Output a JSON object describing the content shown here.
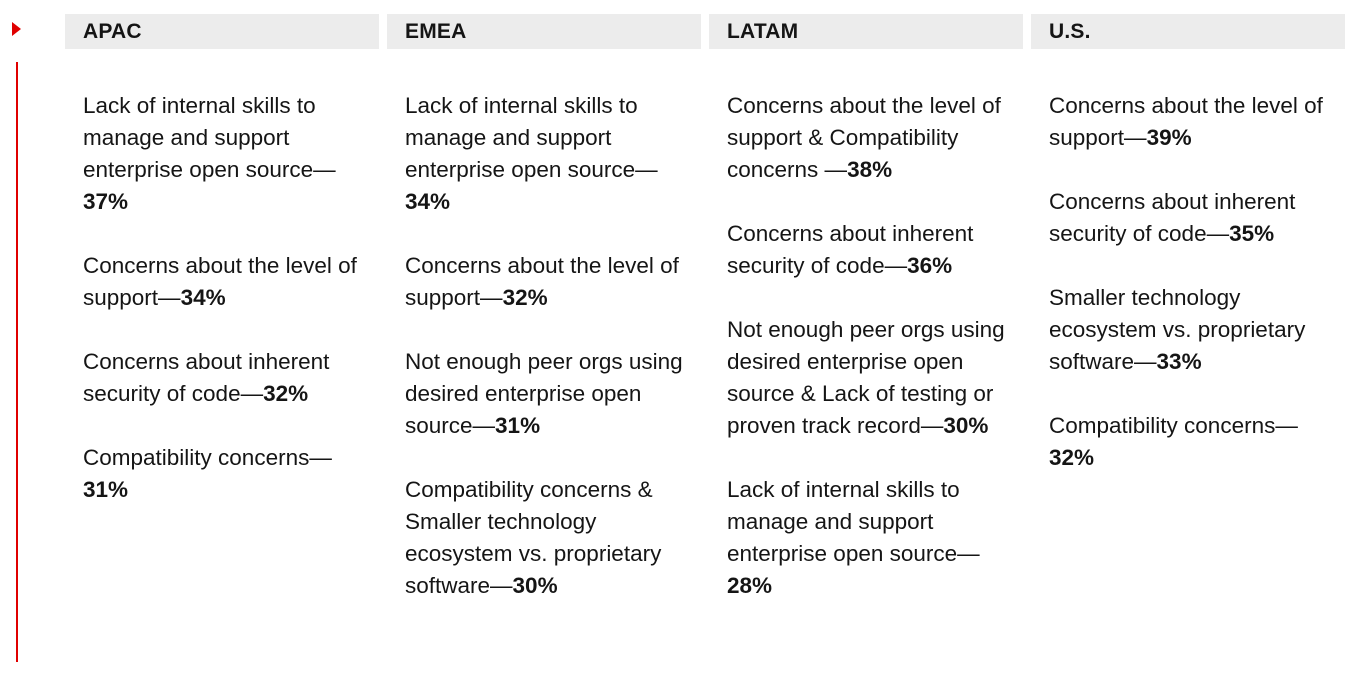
{
  "columns": [
    {
      "header": "APAC",
      "items": [
        {
          "text": "Lack of internal skills to manage and support enterprise open source—",
          "pct": "37%"
        },
        {
          "text": "Concerns about the level of support—",
          "pct": "34%"
        },
        {
          "text": "Concerns about inherent security of code—",
          "pct": "32%"
        },
        {
          "text": "Compatibility concerns—",
          "pct": "31%"
        }
      ]
    },
    {
      "header": "EMEA",
      "items": [
        {
          "text": "Lack of internal skills to manage and support enterprise open source—",
          "pct": "34%"
        },
        {
          "text": "Concerns about the level of support—",
          "pct": "32%"
        },
        {
          "text": "Not enough peer orgs using desired enterprise open source—",
          "pct": "31%"
        },
        {
          "text": "Compatibility concerns & Smaller technology ecosystem vs. proprietary software—",
          "pct": "30%"
        }
      ]
    },
    {
      "header": "LATAM",
      "items": [
        {
          "text": "Concerns about the level of support & Compatibility concerns —",
          "pct": "38%"
        },
        {
          "text": "Concerns about inherent security of code—",
          "pct": "36%"
        },
        {
          "text": "Not enough peer orgs using desired enterprise open source & Lack of testing or proven track record—",
          "pct": "30%"
        },
        {
          "text": "Lack of internal skills to manage and support enterprise open source—",
          "pct": "28%"
        }
      ]
    },
    {
      "header": "U.S.",
      "items": [
        {
          "text": "Concerns about the level of support—",
          "pct": "39%"
        },
        {
          "text": "Concerns about inherent security of code—",
          "pct": "35%"
        },
        {
          "text": "Smaller technology ecosystem vs. proprietary software—",
          "pct": "33%"
        },
        {
          "text": "Compatibility concerns—",
          "pct": "32%"
        }
      ]
    }
  ],
  "colors": {
    "accent": "#e00000",
    "header_bg": "#ececec",
    "text": "#151515"
  }
}
